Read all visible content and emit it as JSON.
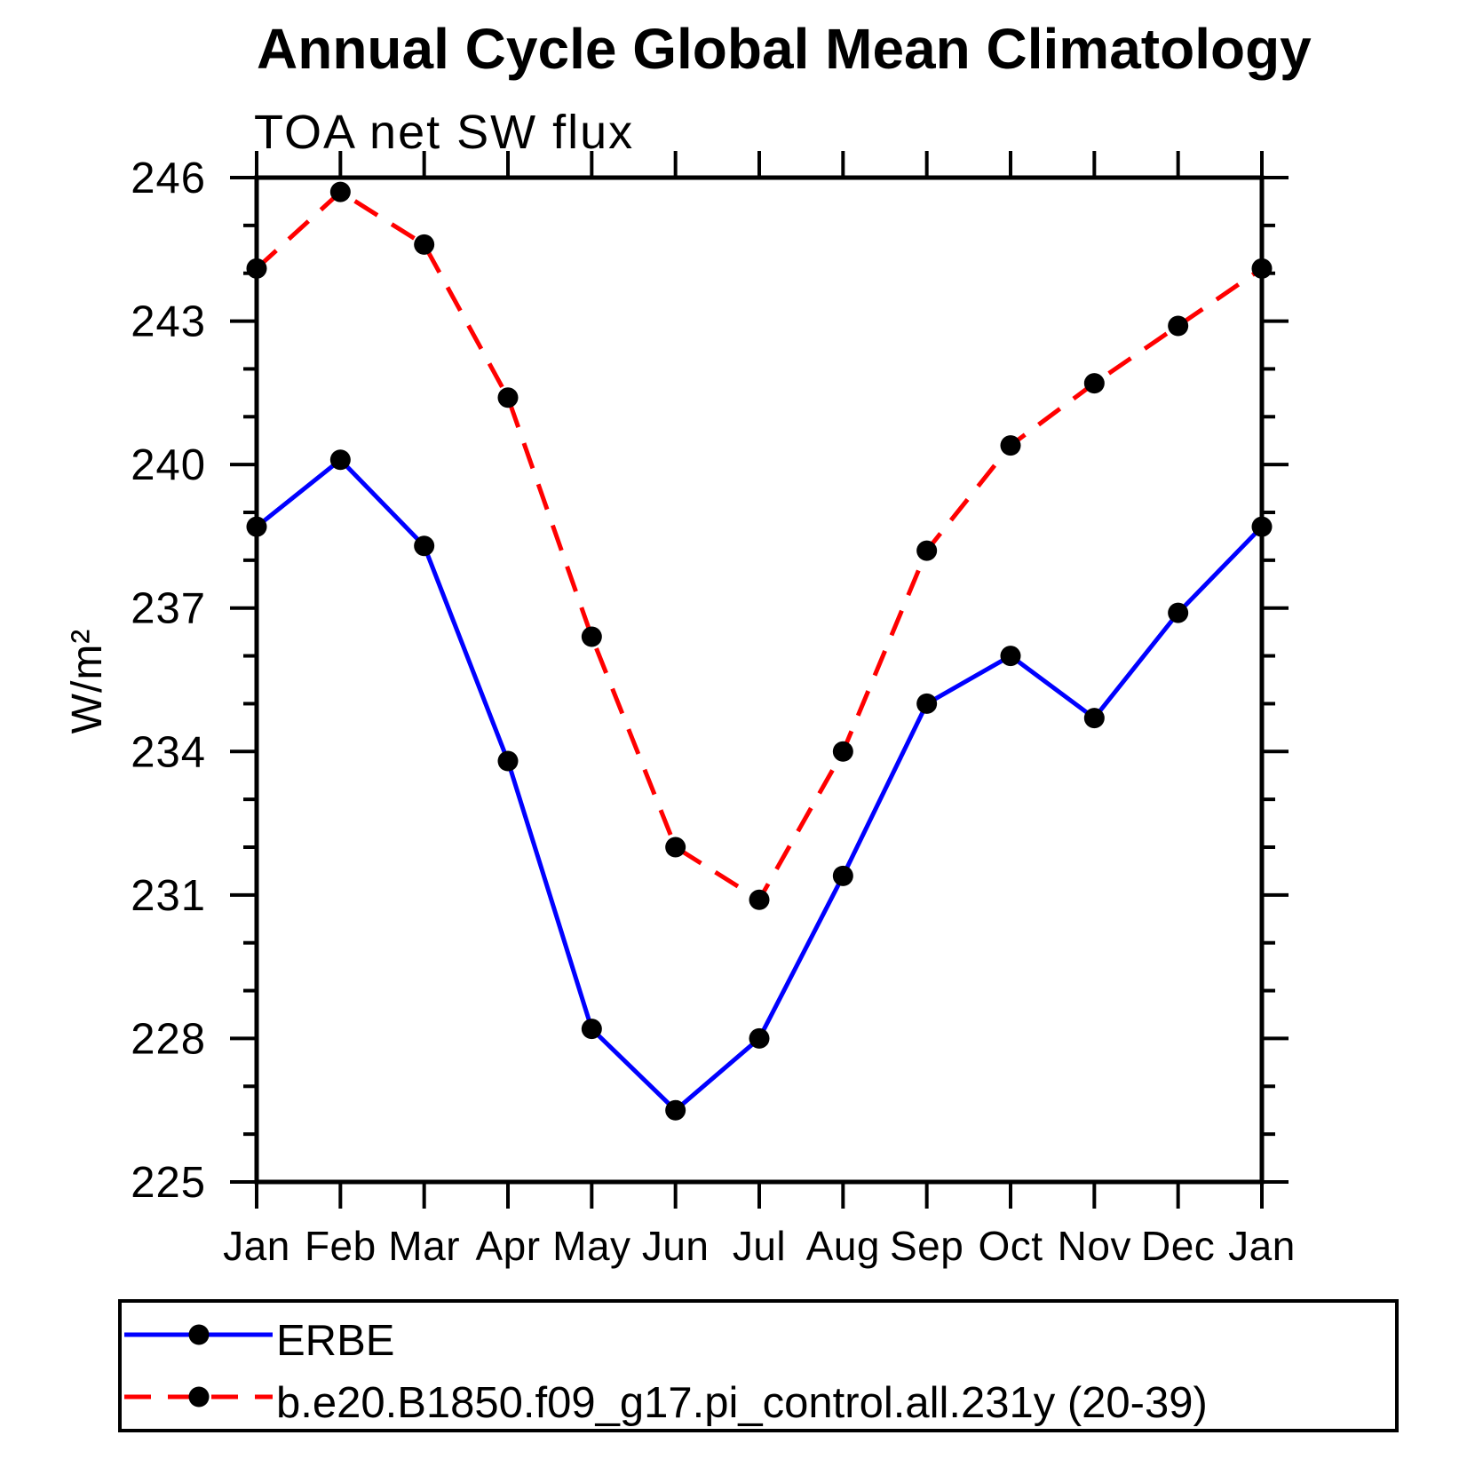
{
  "header": {
    "title": "Annual Cycle Global Mean Climatology"
  },
  "chart_data": {
    "type": "line",
    "title": "Annual Cycle Global Mean Climatology",
    "subtitle": "TOA net SW flux",
    "ylabel": "W/m²",
    "xlabel": "",
    "categories": [
      "Jan",
      "Feb",
      "Mar",
      "Apr",
      "May",
      "Jun",
      "Jul",
      "Aug",
      "Sep",
      "Oct",
      "Nov",
      "Dec",
      "Jan"
    ],
    "ylim": [
      225,
      246
    ],
    "ytick_major_step": 3,
    "ytick_minor_step": 1,
    "grid": false,
    "legend_position": "bottom-box",
    "axis_color": "#000000",
    "marker_color": "#000000",
    "series": [
      {
        "name": "ERBE",
        "color": "#0000ff",
        "style": "solid",
        "marker": "circle",
        "values": [
          238.7,
          240.1,
          238.3,
          233.8,
          228.2,
          226.5,
          228.0,
          231.4,
          235.0,
          236.0,
          234.7,
          236.9,
          238.7
        ]
      },
      {
        "name": "b.e20.B1850.f09_g17.pi_control.all.231y (20-39)",
        "color": "#ff0000",
        "style": "dashed",
        "marker": "circle",
        "values": [
          244.1,
          245.7,
          244.6,
          241.4,
          236.4,
          232.0,
          230.9,
          234.0,
          238.2,
          240.4,
          241.7,
          242.9,
          244.1
        ]
      }
    ]
  }
}
